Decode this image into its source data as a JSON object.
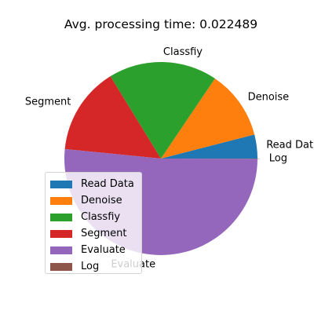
{
  "chart_data": {
    "type": "pie",
    "title": "Avg. processing time: 0.022489",
    "categories": [
      "Read Data",
      "Denoise",
      "Classfiy",
      "Segment",
      "Evaluate",
      "Log"
    ],
    "values": [
      0.0009,
      0.0026,
      0.0041,
      0.0033,
      0.0116,
      1e-05
    ],
    "colors": [
      "#1f77b4",
      "#ff7f0e",
      "#2ca02c",
      "#d62728",
      "#9467bd",
      "#8c564b"
    ],
    "explode": [
      0,
      0,
      0,
      0,
      0,
      0.02
    ],
    "slice_labels": [
      "Read Data",
      "Denoise",
      "Classfiy",
      "Segment",
      "Evaluate",
      "Log"
    ],
    "start_angle_deg": 0,
    "direction": "counterclockwise",
    "legend": {
      "placement": "lower-left",
      "items": [
        "Read Data",
        "Denoise",
        "Classfiy",
        "Segment",
        "Evaluate",
        "Log"
      ]
    }
  }
}
